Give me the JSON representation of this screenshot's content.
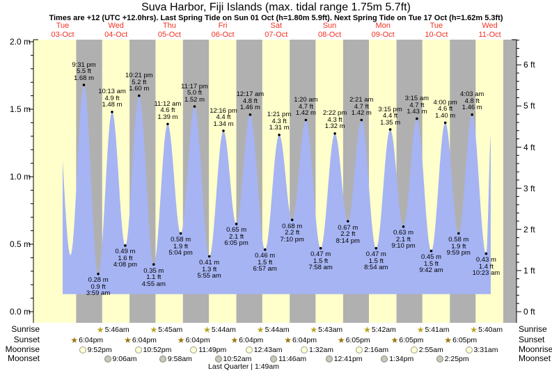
{
  "page": {
    "title": "Suva Harbor, Fiji Islands (max. tidal range 1.75m 5.7ft)",
    "subtitle": "Times are +12 (UTC +12.0hrs). Last Spring Tide on Sun 01 Oct (h=1.80m 5.9ft). Next Spring Tide on Tue 17 Oct (h=1.62m 5.3ft)",
    "footer": "Last Quarter | 1:49am"
  },
  "days": [
    {
      "weekday": "Tue",
      "date": "03-Oct"
    },
    {
      "weekday": "Wed",
      "date": "04-Oct"
    },
    {
      "weekday": "Thu",
      "date": "05-Oct"
    },
    {
      "weekday": "Fri",
      "date": "06-Oct"
    },
    {
      "weekday": "Sat",
      "date": "07-Oct"
    },
    {
      "weekday": "Sun",
      "date": "08-Oct"
    },
    {
      "weekday": "Mon",
      "date": "09-Oct"
    },
    {
      "weekday": "Tue",
      "date": "10-Oct"
    },
    {
      "weekday": "Wed",
      "date": "11-Oct"
    }
  ],
  "axes": {
    "left_labels": [
      {
        "v": 2.0,
        "text": "2.0 m"
      },
      {
        "v": 1.5,
        "text": "1.5 m"
      },
      {
        "v": 1.0,
        "text": "1.0 m"
      },
      {
        "v": 0.5,
        "text": "0.5 m"
      },
      {
        "v": 0.0,
        "text": "0.0 m"
      }
    ],
    "right_labels": [
      {
        "v": 6,
        "text": "6 ft"
      },
      {
        "v": 5,
        "text": "5 ft"
      },
      {
        "v": 4,
        "text": "4 ft"
      },
      {
        "v": 3,
        "text": "3 ft"
      },
      {
        "v": 2,
        "text": "2 ft"
      },
      {
        "v": 1,
        "text": "1 ft"
      },
      {
        "v": 0,
        "text": "0 ft"
      }
    ]
  },
  "chart_data": {
    "type": "area",
    "title": "Suva Harbor, Fiji Islands tide heights",
    "x_days": [
      "Tue 03-Oct",
      "Wed 04-Oct",
      "Thu 05-Oct",
      "Fri 06-Oct",
      "Sat 07-Oct",
      "Sun 08-Oct",
      "Mon 09-Oct",
      "Tue 10-Oct",
      "Wed 11-Oct"
    ],
    "ylim_m": [
      0.0,
      2.0
    ],
    "ylim_ft": [
      0,
      6
    ],
    "grid": false,
    "max_tidal_range": "1.75m 5.7ft",
    "extremes": [
      {
        "day": 0,
        "kind": "high",
        "time": "9:31 pm",
        "height_m": 1.68,
        "height_ft": 5.5,
        "lines": [
          "9:31 pm",
          "5.5 ft",
          "1.68 m"
        ]
      },
      {
        "day": 1,
        "kind": "low",
        "time": "3:59 am",
        "height_m": 0.28,
        "height_ft": 0.9,
        "lines": [
          "0.28 m",
          "0.9 ft",
          "3:59 am"
        ]
      },
      {
        "day": 1,
        "kind": "high",
        "time": "10:13 am",
        "height_m": 1.48,
        "height_ft": 4.9,
        "lines": [
          "10:13 am",
          "4.9 ft",
          "1.48 m"
        ]
      },
      {
        "day": 1,
        "kind": "low",
        "time": "4:08 pm",
        "height_m": 0.49,
        "height_ft": 1.6,
        "lines": [
          "0.49 m",
          "1.6 ft",
          "4:08 pm"
        ]
      },
      {
        "day": 1,
        "kind": "high",
        "time": "10:21 pm",
        "height_m": 1.6,
        "height_ft": 5.2,
        "lines": [
          "10:21 pm",
          "5.2 ft",
          "1.60 m"
        ]
      },
      {
        "day": 2,
        "kind": "low",
        "time": "4:55 am",
        "height_m": 0.35,
        "height_ft": 1.1,
        "lines": [
          "0.35 m",
          "1.1 ft",
          "4:55 am"
        ]
      },
      {
        "day": 2,
        "kind": "high",
        "time": "11:12 am",
        "height_m": 1.39,
        "height_ft": 4.6,
        "lines": [
          "11:12 am",
          "4.6 ft",
          "1.39 m"
        ]
      },
      {
        "day": 2,
        "kind": "low",
        "time": "5:04 pm",
        "height_m": 0.58,
        "height_ft": 1.9,
        "lines": [
          "0.58 m",
          "1.9 ft",
          "5:04 pm"
        ]
      },
      {
        "day": 2,
        "kind": "high",
        "time": "11:17 pm",
        "height_m": 1.52,
        "height_ft": 5.0,
        "lines": [
          "11:17 pm",
          "5.0 ft",
          "1.52 m"
        ]
      },
      {
        "day": 3,
        "kind": "low",
        "time": "5:55 am",
        "height_m": 0.41,
        "height_ft": 1.3,
        "lines": [
          "0.41 m",
          "1.3 ft",
          "5:55 am"
        ]
      },
      {
        "day": 3,
        "kind": "high",
        "time": "12:16 pm",
        "height_m": 1.34,
        "height_ft": 4.4,
        "lines": [
          "12:16 pm",
          "4.4 ft",
          "1.34 m"
        ]
      },
      {
        "day": 3,
        "kind": "low",
        "time": "6:05 pm",
        "height_m": 0.65,
        "height_ft": 2.1,
        "lines": [
          "0.65 m",
          "2.1 ft",
          "6:05 pm"
        ]
      },
      {
        "day": 4,
        "kind": "high",
        "time": "12:17 am",
        "height_m": 1.46,
        "height_ft": 4.8,
        "lines": [
          "12:17 am",
          "4.8 ft",
          "1.46 m"
        ]
      },
      {
        "day": 4,
        "kind": "low",
        "time": "6:57 am",
        "height_m": 0.46,
        "height_ft": 1.5,
        "lines": [
          "0.46 m",
          "1.5 ft",
          "6:57 am"
        ]
      },
      {
        "day": 4,
        "kind": "high",
        "time": "1:21 pm",
        "height_m": 1.31,
        "height_ft": 4.3,
        "lines": [
          "1:21 pm",
          "4.3 ft",
          "1.31 m"
        ]
      },
      {
        "day": 4,
        "kind": "low",
        "time": "7:10 pm",
        "height_m": 0.68,
        "height_ft": 2.2,
        "lines": [
          "0.68 m",
          "2.2 ft",
          "7:10 pm"
        ]
      },
      {
        "day": 5,
        "kind": "high",
        "time": "1:20 am",
        "height_m": 1.42,
        "height_ft": 4.7,
        "lines": [
          "1:20 am",
          "4.7 ft",
          "1.42 m"
        ]
      },
      {
        "day": 5,
        "kind": "low",
        "time": "7:58 am",
        "height_m": 0.47,
        "height_ft": 1.5,
        "lines": [
          "0.47 m",
          "1.5 ft",
          "7:58 am"
        ]
      },
      {
        "day": 5,
        "kind": "high",
        "time": "2:22 pm",
        "height_m": 1.32,
        "height_ft": 4.3,
        "lines": [
          "2:22 pm",
          "4.3 ft",
          "1.32 m"
        ]
      },
      {
        "day": 5,
        "kind": "low",
        "time": "8:14 pm",
        "height_m": 0.67,
        "height_ft": 2.2,
        "lines": [
          "0.67 m",
          "2.2 ft",
          "8:14 pm"
        ]
      },
      {
        "day": 6,
        "kind": "high",
        "time": "2:21 am",
        "height_m": 1.42,
        "height_ft": 4.7,
        "lines": [
          "2:21 am",
          "4.7 ft",
          "1.42 m"
        ]
      },
      {
        "day": 6,
        "kind": "low",
        "time": "8:54 am",
        "height_m": 0.47,
        "height_ft": 1.5,
        "lines": [
          "0.47 m",
          "1.5 ft",
          "8:54 am"
        ]
      },
      {
        "day": 6,
        "kind": "high",
        "time": "3:15 pm",
        "height_m": 1.35,
        "height_ft": 4.4,
        "lines": [
          "3:15 pm",
          "4.4 ft",
          "1.35 m"
        ]
      },
      {
        "day": 6,
        "kind": "low",
        "time": "9:10 pm",
        "height_m": 0.63,
        "height_ft": 2.1,
        "lines": [
          "0.63 m",
          "2.1 ft",
          "9:10 pm"
        ]
      },
      {
        "day": 7,
        "kind": "high",
        "time": "3:15 am",
        "height_m": 1.43,
        "height_ft": 4.7,
        "lines": [
          "3:15 am",
          "4.7 ft",
          "1.43 m"
        ]
      },
      {
        "day": 7,
        "kind": "low",
        "time": "9:42 am",
        "height_m": 0.45,
        "height_ft": 1.5,
        "lines": [
          "0.45 m",
          "1.5 ft",
          "9:42 am"
        ]
      },
      {
        "day": 7,
        "kind": "high",
        "time": "4:00 pm",
        "height_m": 1.4,
        "height_ft": 4.6,
        "lines": [
          "4:00 pm",
          "4.6 ft",
          "1.40 m"
        ]
      },
      {
        "day": 7,
        "kind": "low",
        "time": "9:59 pm",
        "height_m": 0.58,
        "height_ft": 1.9,
        "lines": [
          "0.58 m",
          "1.9 ft",
          "9:59 pm"
        ]
      },
      {
        "day": 8,
        "kind": "high",
        "time": "4:03 am",
        "height_m": 1.46,
        "height_ft": 4.8,
        "lines": [
          "4:03 am",
          "4.8 ft",
          "1.46 m"
        ]
      },
      {
        "day": 8,
        "kind": "low",
        "time": "10:23 am",
        "height_m": 0.43,
        "height_ft": 1.4,
        "lines": [
          "0.43 m",
          "1.4 ft",
          "10:23 am"
        ]
      }
    ]
  },
  "astro": {
    "rows": [
      {
        "id": "sunrise",
        "label": "Sunrise",
        "icon": "sunrise-star",
        "events": [
          {
            "day": 1,
            "time": "5:46am"
          },
          {
            "day": 2,
            "time": "5:45am"
          },
          {
            "day": 3,
            "time": "5:44am"
          },
          {
            "day": 4,
            "time": "5:44am"
          },
          {
            "day": 5,
            "time": "5:43am"
          },
          {
            "day": 6,
            "time": "5:42am"
          },
          {
            "day": 7,
            "time": "5:41am"
          },
          {
            "day": 8,
            "time": "5:40am"
          }
        ]
      },
      {
        "id": "sunset",
        "label": "Sunset",
        "icon": "sunset-star",
        "events": [
          {
            "day": 0,
            "time": "6:04pm"
          },
          {
            "day": 1,
            "time": "6:04pm"
          },
          {
            "day": 2,
            "time": "6:04pm"
          },
          {
            "day": 3,
            "time": "6:04pm"
          },
          {
            "day": 4,
            "time": "6:04pm"
          },
          {
            "day": 5,
            "time": "6:05pm"
          },
          {
            "day": 6,
            "time": "6:05pm"
          },
          {
            "day": 7,
            "time": "6:05pm"
          }
        ]
      },
      {
        "id": "moonrise",
        "label": "Moonrise",
        "icon": "moonrise-circle",
        "events": [
          {
            "day": 0,
            "time": "9:52pm"
          },
          {
            "day": 1,
            "time": "10:52pm"
          },
          {
            "day": 2,
            "time": "11:49pm"
          },
          {
            "day": 4,
            "time": "12:43am"
          },
          {
            "day": 5,
            "time": "1:32am"
          },
          {
            "day": 6,
            "time": "2:16am"
          },
          {
            "day": 7,
            "time": "2:55am"
          },
          {
            "day": 8,
            "time": "3:31am"
          }
        ]
      },
      {
        "id": "moonset",
        "label": "Moonset",
        "icon": "moonset-circle",
        "events": [
          {
            "day": 1,
            "time": "9:06am"
          },
          {
            "day": 2,
            "time": "9:58am"
          },
          {
            "day": 3,
            "time": "10:52am"
          },
          {
            "day": 4,
            "time": "11:46am"
          },
          {
            "day": 5,
            "time": "12:41pm"
          },
          {
            "day": 6,
            "time": "1:34pm"
          },
          {
            "day": 7,
            "time": "2:25pm"
          }
        ]
      }
    ]
  },
  "colors": {
    "day_band": "#ffffcc",
    "night_band": "#b0b0b0",
    "tide_fill": "#a6b4f3",
    "day_label_red": "#f4301f",
    "sunrise_star": "#b5a41c",
    "sunset_star": "#9a7507",
    "moonrise_fill": "#ffffd6",
    "moonrise_stroke": "#9a9a8a",
    "moonset_fill": "#c8c8ba",
    "moonset_stroke": "#84847a",
    "axis": "#000000"
  }
}
